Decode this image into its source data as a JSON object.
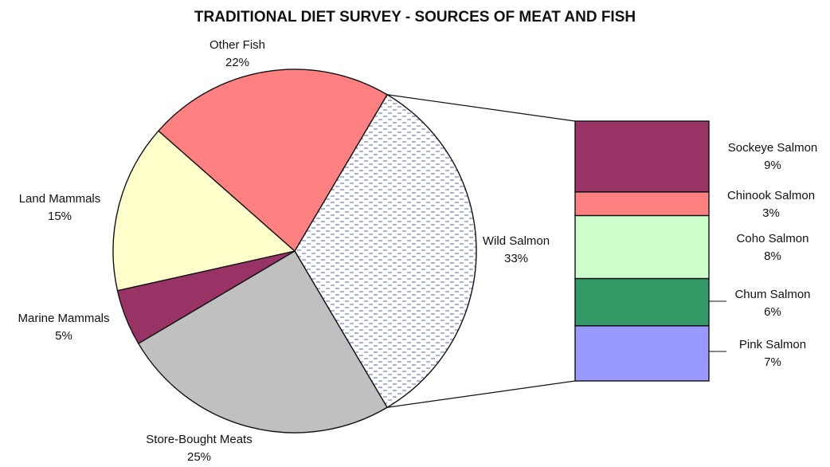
{
  "chart_data": {
    "type": "bar-of-pie",
    "title": "TRADITIONAL DIET SURVEY - SOURCES OF MEAT AND FISH",
    "pie": {
      "slices": [
        {
          "name": "Wild Salmon",
          "value": 33,
          "label": "33%",
          "color": "#ffffff",
          "pattern": "dashed-blue"
        },
        {
          "name": "Store-Bought Meats",
          "value": 25,
          "label": "25%",
          "color": "#c0c0c0"
        },
        {
          "name": "Marine Mammals",
          "value": 5,
          "label": "5%",
          "color": "#993366"
        },
        {
          "name": "Land Mammals",
          "value": 15,
          "label": "15%",
          "color": "#ffffcc"
        },
        {
          "name": "Other Fish",
          "value": 22,
          "label": "22%",
          "color": "#ff8080"
        }
      ]
    },
    "bar": {
      "segments": [
        {
          "name": "Sockeye Salmon",
          "value": 9,
          "label": "9%",
          "color": "#993366"
        },
        {
          "name": "Chinook Salmon",
          "value": 3,
          "label": "3%",
          "color": "#ff8080"
        },
        {
          "name": "Coho Salmon",
          "value": 8,
          "label": "8%",
          "color": "#ccffcc"
        },
        {
          "name": "Chum Salmon",
          "value": 6,
          "label": "6%",
          "color": "#339966"
        },
        {
          "name": "Pink Salmon",
          "value": 7,
          "label": "7%",
          "color": "#9999ff"
        }
      ]
    }
  }
}
